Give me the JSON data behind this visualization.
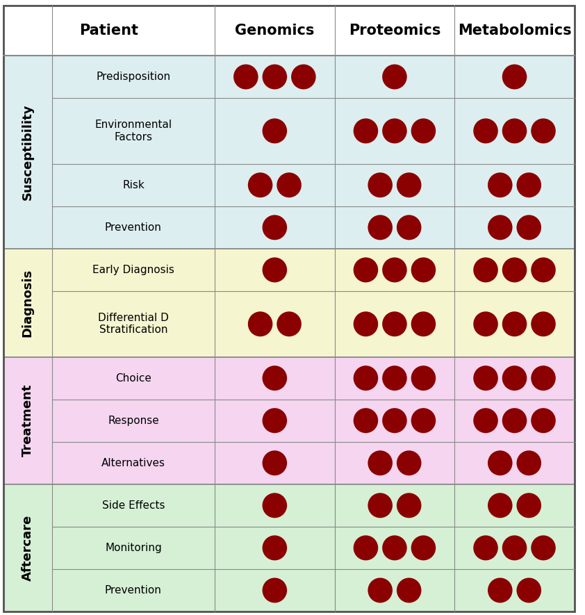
{
  "title": "Patient",
  "col_headers": [
    "Genomics",
    "Proteomics",
    "Metabolomics"
  ],
  "row_groups": [
    {
      "name": "Susceptibility",
      "color": "#ddeef0",
      "rows": [
        {
          "label": "Predisposition",
          "dots": [
            3,
            1,
            1
          ]
        },
        {
          "label": "Environmental\nFactors",
          "dots": [
            1,
            3,
            3
          ]
        },
        {
          "label": "Risk",
          "dots": [
            2,
            2,
            2
          ]
        },
        {
          "label": "Prevention",
          "dots": [
            1,
            2,
            2
          ]
        }
      ]
    },
    {
      "name": "Diagnosis",
      "color": "#f5f5d0",
      "rows": [
        {
          "label": "Early Diagnosis",
          "dots": [
            1,
            3,
            3
          ]
        },
        {
          "label": "Differential D\nStratification",
          "dots": [
            2,
            3,
            3
          ]
        }
      ]
    },
    {
      "name": "Treatment",
      "color": "#f5d5f0",
      "rows": [
        {
          "label": "Choice",
          "dots": [
            1,
            3,
            3
          ]
        },
        {
          "label": "Response",
          "dots": [
            1,
            3,
            3
          ]
        },
        {
          "label": "Alternatives",
          "dots": [
            1,
            2,
            2
          ]
        }
      ]
    },
    {
      "name": "Aftercare",
      "color": "#d5f0d5",
      "rows": [
        {
          "label": "Side Effects",
          "dots": [
            1,
            2,
            2
          ]
        },
        {
          "label": "Monitoring",
          "dots": [
            1,
            3,
            3
          ]
        },
        {
          "label": "Prevention",
          "dots": [
            1,
            2,
            2
          ]
        }
      ]
    }
  ],
  "dot_color": "#8b0000",
  "border_color": "#888888",
  "group_label_fontsize": 13,
  "header_fontsize": 15,
  "row_label_fontsize": 11
}
